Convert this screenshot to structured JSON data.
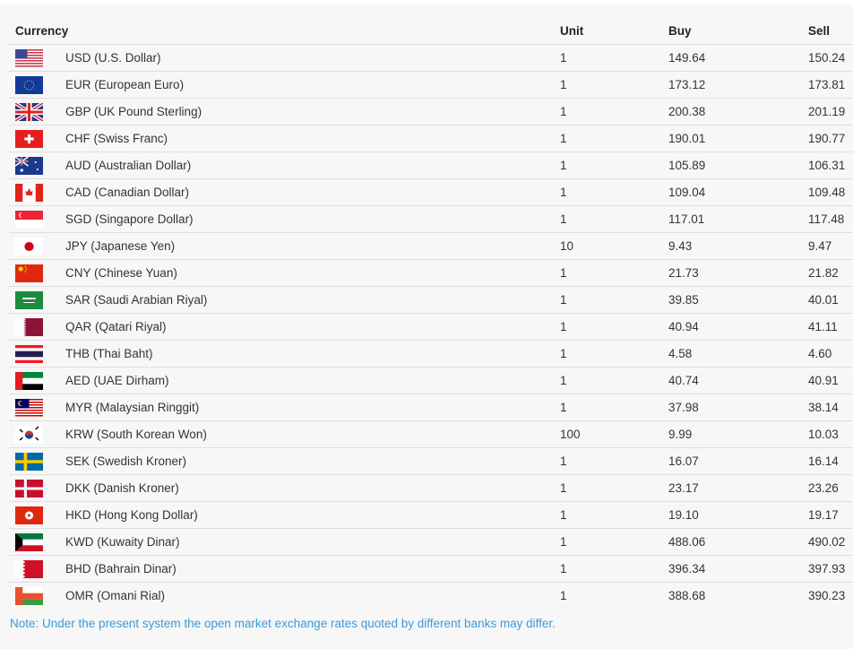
{
  "table": {
    "headers": {
      "currency": "Currency",
      "unit": "Unit",
      "buy": "Buy",
      "sell": "Sell"
    },
    "rows": [
      {
        "code": "USD",
        "name": "USD (U.S. Dollar)",
        "unit": "1",
        "buy": "149.64",
        "sell": "150.24"
      },
      {
        "code": "EUR",
        "name": "EUR (European Euro)",
        "unit": "1",
        "buy": "173.12",
        "sell": "173.81"
      },
      {
        "code": "GBP",
        "name": "GBP (UK Pound Sterling)",
        "unit": "1",
        "buy": "200.38",
        "sell": "201.19"
      },
      {
        "code": "CHF",
        "name": "CHF (Swiss Franc)",
        "unit": "1",
        "buy": "190.01",
        "sell": "190.77"
      },
      {
        "code": "AUD",
        "name": "AUD (Australian Dollar)",
        "unit": "1",
        "buy": "105.89",
        "sell": "106.31"
      },
      {
        "code": "CAD",
        "name": "CAD (Canadian Dollar)",
        "unit": "1",
        "buy": "109.04",
        "sell": "109.48"
      },
      {
        "code": "SGD",
        "name": "SGD (Singapore Dollar)",
        "unit": "1",
        "buy": "117.01",
        "sell": "117.48"
      },
      {
        "code": "JPY",
        "name": "JPY (Japanese Yen)",
        "unit": "10",
        "buy": "9.43",
        "sell": "9.47"
      },
      {
        "code": "CNY",
        "name": "CNY (Chinese Yuan)",
        "unit": "1",
        "buy": "21.73",
        "sell": "21.82"
      },
      {
        "code": "SAR",
        "name": "SAR (Saudi Arabian Riyal)",
        "unit": "1",
        "buy": "39.85",
        "sell": "40.01"
      },
      {
        "code": "QAR",
        "name": "QAR (Qatari Riyal)",
        "unit": "1",
        "buy": "40.94",
        "sell": "41.11"
      },
      {
        "code": "THB",
        "name": "THB (Thai Baht)",
        "unit": "1",
        "buy": "4.58",
        "sell": "4.60"
      },
      {
        "code": "AED",
        "name": "AED (UAE Dirham)",
        "unit": "1",
        "buy": "40.74",
        "sell": "40.91"
      },
      {
        "code": "MYR",
        "name": "MYR (Malaysian Ringgit)",
        "unit": "1",
        "buy": "37.98",
        "sell": "38.14"
      },
      {
        "code": "KRW",
        "name": "KRW (South Korean Won)",
        "unit": "100",
        "buy": "9.99",
        "sell": "10.03"
      },
      {
        "code": "SEK",
        "name": "SEK (Swedish Kroner)",
        "unit": "1",
        "buy": "16.07",
        "sell": "16.14"
      },
      {
        "code": "DKK",
        "name": "DKK (Danish Kroner)",
        "unit": "1",
        "buy": "23.17",
        "sell": "23.26"
      },
      {
        "code": "HKD",
        "name": "HKD (Hong Kong Dollar)",
        "unit": "1",
        "buy": "19.10",
        "sell": "19.17"
      },
      {
        "code": "KWD",
        "name": "KWD (Kuwaity Dinar)",
        "unit": "1",
        "buy": "488.06",
        "sell": "490.02"
      },
      {
        "code": "BHD",
        "name": "BHD (Bahrain Dinar)",
        "unit": "1",
        "buy": "396.34",
        "sell": "397.93"
      },
      {
        "code": "OMR",
        "name": "OMR (Omani Rial)",
        "unit": "1",
        "buy": "388.68",
        "sell": "390.23"
      }
    ]
  },
  "note": "Note: Under the present system the open market exchange rates quoted by different banks may differ.",
  "colors": {
    "note": "#3a9ad9",
    "background": "#f7f7f7"
  }
}
